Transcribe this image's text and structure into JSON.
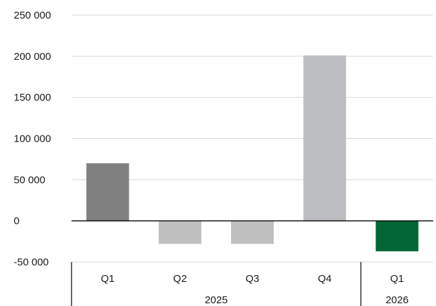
{
  "chart_data": {
    "type": "bar",
    "title": "",
    "xlabel": "",
    "ylabel": "",
    "ylim": [
      -50000,
      250000
    ],
    "yticks": [
      -50000,
      0,
      50000,
      100000,
      150000,
      200000,
      250000
    ],
    "ytick_labels": [
      "-50 000",
      "0",
      "50 000",
      "100 000",
      "150 000",
      "200 000",
      "250 000"
    ],
    "grid": true,
    "legend": "none",
    "categories": [
      "Q1",
      "Q2",
      "Q3",
      "Q4",
      "Q1"
    ],
    "groups": [
      {
        "label": "2025",
        "count": 4
      },
      {
        "label": "2026",
        "count": 1
      }
    ],
    "values": [
      70000,
      -28000,
      -28000,
      201000,
      -37000
    ],
    "bar_colors": [
      "#808080",
      "#bfbfbf",
      "#bfbfbf",
      "#bcbdc0",
      "#006633"
    ]
  }
}
